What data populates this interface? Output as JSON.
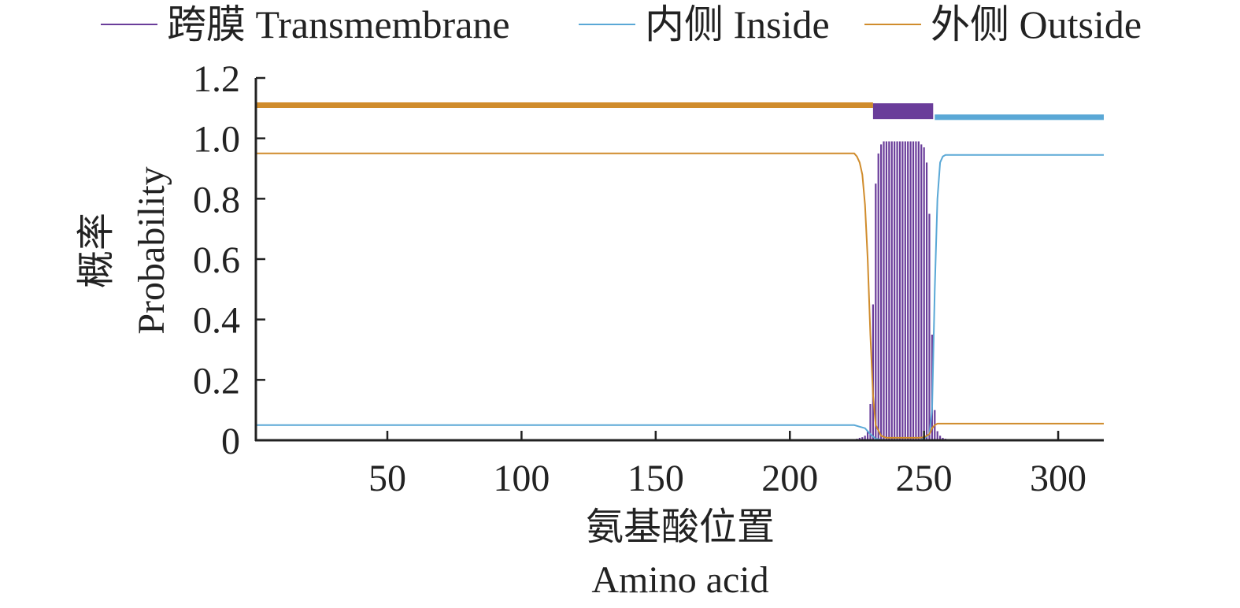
{
  "chart_data": {
    "type": "line",
    "legend": [
      {
        "name": "跨膜 Transmembrane",
        "color": "#6a3d9a"
      },
      {
        "name": "内侧 Inside",
        "color": "#5aa8d6"
      },
      {
        "name": "外侧 Outside",
        "color": "#d08c2c"
      }
    ],
    "xlabel_cn": "氨基酸位置",
    "xlabel_en": "Amino acid",
    "ylabel_cn": "概率",
    "ylabel_en": "Probability",
    "xlim": [
      1,
      317
    ],
    "ylim": [
      0,
      1.2
    ],
    "x_ticks": [
      50,
      100,
      150,
      200,
      250,
      300
    ],
    "y_ticks": [
      {
        "value": 0,
        "label": "0"
      },
      {
        "value": 0.2,
        "label": "0.2"
      },
      {
        "value": 0.4,
        "label": "0.4"
      },
      {
        "value": 0.6,
        "label": "0.6"
      },
      {
        "value": 0.8,
        "label": "0.8"
      },
      {
        "value": 1.0,
        "label": "1.0"
      },
      {
        "value": 1.2,
        "label": "1.2"
      }
    ],
    "topology": [
      {
        "region": "Outside",
        "start": 1,
        "end": 231,
        "y": 1.11
      },
      {
        "region": "Transmembrane",
        "start": 231,
        "end": 254,
        "y": 1.09
      },
      {
        "region": "Inside",
        "start": 254,
        "end": 317,
        "y": 1.07
      }
    ],
    "series": [
      {
        "name": "跨膜 Transmembrane",
        "style": "impulse",
        "x": [
          225,
          226,
          227,
          228,
          229,
          230,
          231,
          232,
          233,
          234,
          235,
          236,
          237,
          238,
          239,
          240,
          241,
          242,
          243,
          244,
          245,
          246,
          247,
          248,
          249,
          250,
          251,
          252,
          253,
          254,
          255,
          256,
          257,
          258,
          259
        ],
        "values": [
          0.005,
          0.008,
          0.01,
          0.015,
          0.03,
          0.12,
          0.45,
          0.85,
          0.95,
          0.98,
          0.99,
          0.99,
          0.99,
          0.99,
          0.99,
          0.99,
          0.99,
          0.99,
          0.99,
          0.99,
          0.99,
          0.99,
          0.99,
          0.99,
          0.98,
          0.97,
          0.92,
          0.75,
          0.35,
          0.1,
          0.03,
          0.015,
          0.008,
          0.005,
          0.003
        ]
      },
      {
        "name": "内侧 Inside",
        "style": "line",
        "x": [
          1,
          222,
          224,
          226,
          228,
          230,
          232,
          234,
          236,
          248,
          250,
          252,
          253,
          254,
          255,
          256,
          257,
          258,
          260,
          317
        ],
        "values": [
          0.05,
          0.05,
          0.05,
          0.045,
          0.04,
          0.02,
          0.005,
          0.002,
          0.0,
          0.0,
          0.005,
          0.02,
          0.1,
          0.5,
          0.8,
          0.92,
          0.94,
          0.945,
          0.945,
          0.945
        ]
      },
      {
        "name": "外侧 Outside",
        "style": "line",
        "x": [
          1,
          222,
          224,
          225,
          226,
          227,
          228,
          229,
          230,
          231,
          232,
          234,
          236,
          248,
          250,
          252,
          253,
          254,
          255,
          256,
          258,
          260,
          317
        ],
        "values": [
          0.95,
          0.95,
          0.95,
          0.94,
          0.92,
          0.88,
          0.78,
          0.6,
          0.35,
          0.15,
          0.05,
          0.015,
          0.008,
          0.008,
          0.01,
          0.02,
          0.04,
          0.05,
          0.055,
          0.055,
          0.055,
          0.055,
          0.055
        ]
      }
    ]
  }
}
